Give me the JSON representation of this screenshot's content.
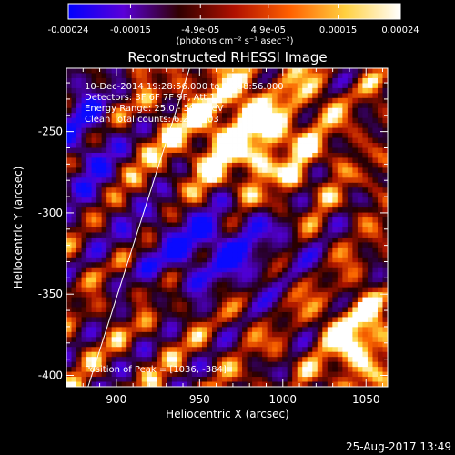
{
  "colorbar": {
    "tick_labels": [
      "-0.00024",
      "-0.00015",
      "-4.9e-05",
      "4.9e-05",
      "0.00015",
      "0.00024"
    ],
    "tick_values": [
      -0.00024,
      -0.00015,
      -4.9e-05,
      4.9e-05,
      0.00015,
      0.00024
    ],
    "range": [
      -0.00024,
      0.00024
    ],
    "unit_label": "(photons cm⁻² s⁻¹ asec⁻²)",
    "colors": [
      "#0000ff",
      "#5a00d8",
      "#300000",
      "#b01000",
      "#ff6000",
      "#ffd040",
      "#ffffff"
    ]
  },
  "plot": {
    "title": "Reconstructed RHESSI Image",
    "info_lines": [
      "10-Dec-2014 19:28:56.000 to 19:38:56.000",
      "Detectors: 3F 6F 7F 9F, Att 1",
      "Energy Range: 25.0 - 50.0 keV",
      "Clean     Total counts: 6.25E+03"
    ],
    "peak_label": "Position of Peak = [1036, -384]",
    "timestamp": "25-Aug-2017 13:49"
  },
  "chart_data": {
    "type": "heatmap",
    "title": "Reconstructed RHESSI Image",
    "xlabel": "Heliocentric X (arcsec)",
    "ylabel": "Heliocentric Y (arcsec)",
    "xlim": [
      870,
      1063
    ],
    "ylim": [
      -407,
      -211
    ],
    "x_ticks": [
      900,
      950,
      1000,
      1050
    ],
    "x_tick_labels": [
      "900",
      "950",
      "1000",
      "1050"
    ],
    "y_ticks": [
      -250,
      -300,
      -350,
      -400
    ],
    "y_tick_labels": [
      "-250",
      "-300",
      "-350",
      "-400"
    ],
    "limb_line": [
      [
        883,
        -407
      ],
      [
        944,
        -211
      ]
    ],
    "peak_position": [
      1036,
      -384
    ]
  }
}
